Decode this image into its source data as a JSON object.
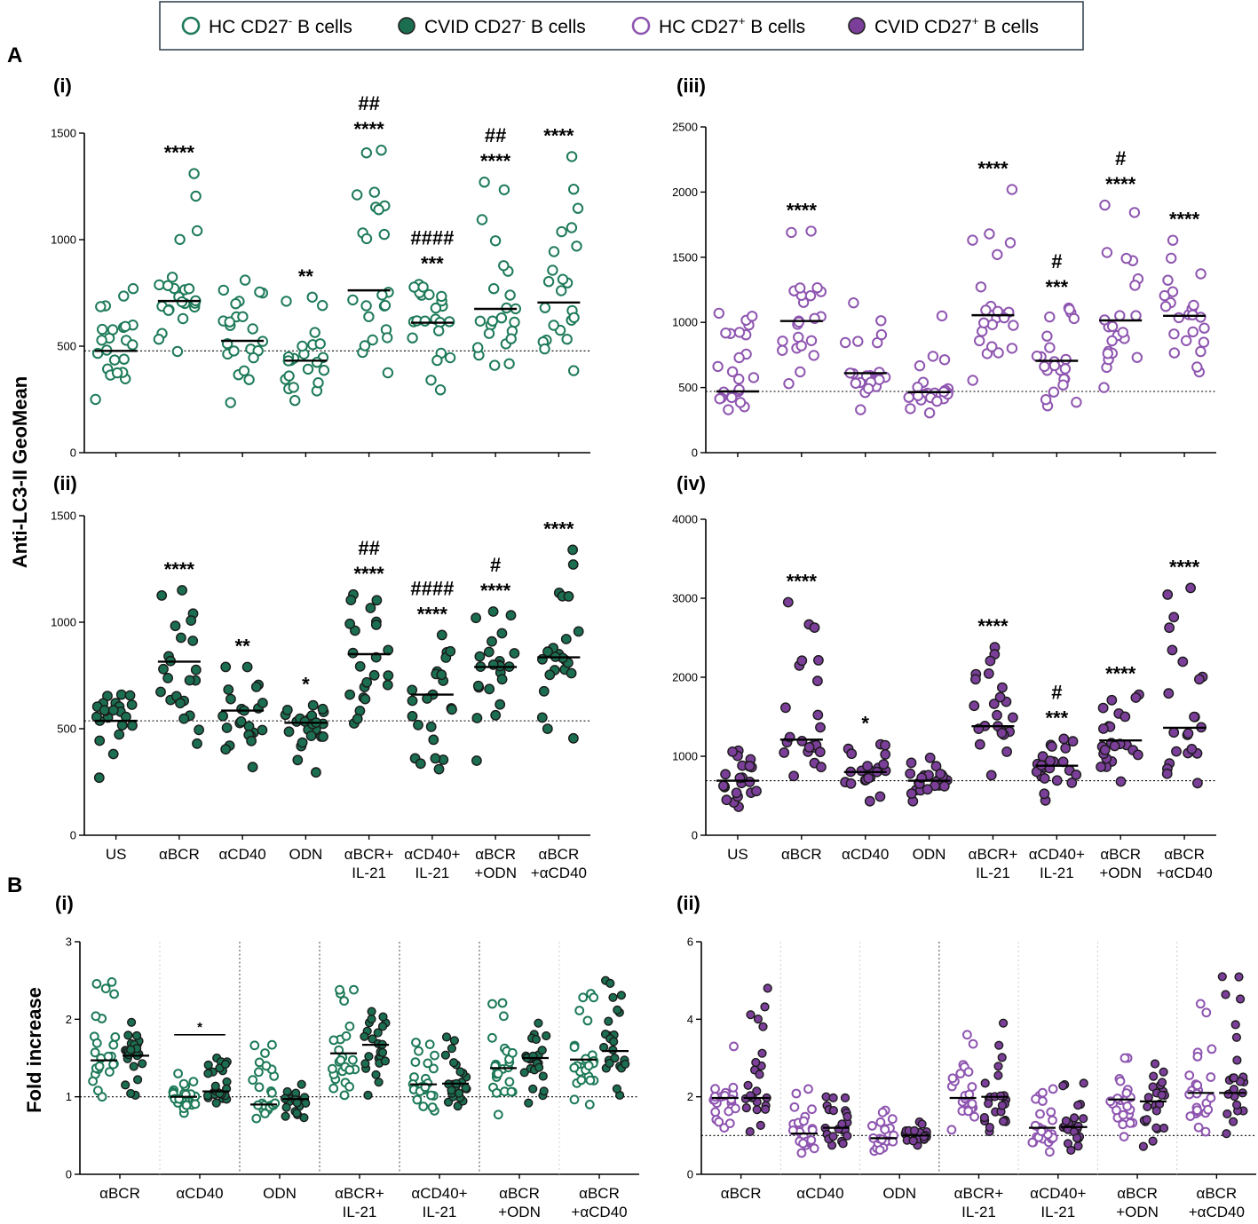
{
  "colors": {
    "green": "#1b6e50",
    "green_fill": "#1b6e50",
    "purple": "#6a2c86",
    "purple_fill": "#7b3f99",
    "hollow_green_stroke": "#1d7a58",
    "hollow_purple_stroke": "#8e55b0"
  },
  "legend": [
    {
      "prefix": "HC CD27",
      "sup": "-",
      "suffix": " B cells",
      "style": "hollow",
      "color": "green"
    },
    {
      "prefix": "CVID CD27",
      "sup": "-",
      "suffix": " B cells",
      "style": "filled",
      "color": "green"
    },
    {
      "prefix": "HC CD27",
      "sup": "+",
      "suffix": " B cells",
      "style": "hollow",
      "color": "purple"
    },
    {
      "prefix": "CVID CD27",
      "sup": "+",
      "suffix": " B cells",
      "style": "filled",
      "color": "purple"
    }
  ],
  "section_labels": {
    "A": "A",
    "B": "B"
  },
  "y_axis_labels": {
    "A": "Anti-LC3-II GeoMean",
    "B": "Fold increase"
  },
  "chart_data": [
    {
      "id": "A-i",
      "panel": "(i)",
      "type": "scatter",
      "group": "HC CD27- B cells",
      "style": "hollow",
      "color": "green",
      "ylim": [
        0,
        1500
      ],
      "yticks": [
        0,
        500,
        1000,
        1500
      ],
      "baseline": 478,
      "categories": [
        "US",
        "αBCR",
        "αCD40",
        "ODN",
        "αBCR+ IL-21",
        "αCD40+ IL-21",
        "αBCR +ODN",
        "αBCR +αCD40"
      ],
      "medians": [
        478,
        712,
        525,
        432,
        762,
        610,
        675,
        705
      ],
      "min": [
        250,
        475,
        235,
        245,
        375,
        295,
        410,
        385
      ],
      "max": [
        770,
        1310,
        810,
        730,
        1420,
        790,
        1270,
        1390
      ],
      "labels": [
        [
          ""
        ],
        [
          "****"
        ],
        [
          ""
        ],
        [
          "**"
        ],
        [
          "##",
          "****"
        ],
        [
          "####",
          "***"
        ],
        [
          "##",
          "****"
        ],
        [
          "****"
        ]
      ]
    },
    {
      "id": "A-ii",
      "panel": "(ii)",
      "type": "scatter",
      "group": "CVID CD27- B cells",
      "style": "filled",
      "color": "green",
      "ylim": [
        0,
        1500
      ],
      "yticks": [
        0,
        500,
        1000,
        1500
      ],
      "baseline": 537,
      "categories": [
        "US",
        "αBCR",
        "αCD40",
        "ODN",
        "αBCR+ IL-21",
        "αCD40+ IL-21",
        "αBCR +ODN",
        "αBCR +αCD40"
      ],
      "medians": [
        537,
        815,
        585,
        528,
        850,
        660,
        790,
        835
      ],
      "min": [
        270,
        430,
        320,
        295,
        525,
        310,
        350,
        455
      ],
      "max": [
        660,
        1150,
        790,
        610,
        1130,
        940,
        1050,
        1340
      ],
      "labels": [
        [
          ""
        ],
        [
          "****"
        ],
        [
          "**"
        ],
        [
          "*"
        ],
        [
          "##",
          "****"
        ],
        [
          "####",
          "****"
        ],
        [
          "#",
          "****"
        ],
        [
          "****"
        ]
      ]
    },
    {
      "id": "A-iii",
      "panel": "(iii)",
      "type": "scatter",
      "group": "HC CD27+ B cells",
      "style": "hollow",
      "color": "purple",
      "ylim": [
        0,
        2500
      ],
      "yticks": [
        0,
        500,
        1000,
        1500,
        2000,
        2500
      ],
      "baseline": 470,
      "categories": [
        "US",
        "αBCR",
        "αCD40",
        "ODN",
        "αBCR+ IL-21",
        "αCD40+ IL-21",
        "αBCR +ODN",
        "αBCR +αCD40"
      ],
      "medians": [
        470,
        1010,
        610,
        465,
        1055,
        705,
        1015,
        1050
      ],
      "min": [
        330,
        530,
        330,
        305,
        555,
        360,
        500,
        620
      ],
      "max": [
        1070,
        1700,
        1150,
        1050,
        2020,
        1110,
        1900,
        1630
      ],
      "labels": [
        [
          ""
        ],
        [
          "****"
        ],
        [
          ""
        ],
        [
          ""
        ],
        [
          "****"
        ],
        [
          "#",
          "***"
        ],
        [
          "#",
          "****"
        ],
        [
          "****"
        ]
      ]
    },
    {
      "id": "A-iv",
      "panel": "(iv)",
      "type": "scatter",
      "group": "CVID CD27+ B cells",
      "style": "filled",
      "color": "purple",
      "ylim": [
        0,
        4000
      ],
      "yticks": [
        0,
        1000,
        2000,
        3000,
        4000
      ],
      "baseline": 690,
      "categories": [
        "US",
        "αBCR",
        "αCD40",
        "ODN",
        "αBCR+ IL-21",
        "αCD40+ IL-21",
        "αBCR +ODN",
        "αBCR +αCD40"
      ],
      "medians": [
        690,
        1210,
        800,
        690,
        1380,
        880,
        1200,
        1360
      ],
      "min": [
        360,
        750,
        430,
        430,
        760,
        440,
        680,
        660
      ],
      "max": [
        1070,
        2950,
        1150,
        980,
        2380,
        1220,
        1780,
        3130
      ],
      "labels": [
        [
          ""
        ],
        [
          "****"
        ],
        [
          "*"
        ],
        [
          ""
        ],
        [
          "****"
        ],
        [
          "#",
          "***"
        ],
        [
          "****"
        ],
        [
          "****"
        ]
      ]
    },
    {
      "id": "B-i",
      "panel": "(i)",
      "type": "scatter",
      "group": "CD27- fold increase (HC hollow, CVID filled)",
      "color": "green",
      "ylim": [
        0,
        3
      ],
      "yticks": [
        0,
        1,
        2,
        3
      ],
      "baseline": 1.0,
      "categories": [
        "αBCR",
        "αCD40",
        "ODN",
        "αBCR+ IL-21",
        "αCD40+ IL-21",
        "αBCR +ODN",
        "αBCR +αCD40"
      ],
      "series": [
        {
          "name": "HC CD27- B cells",
          "style": "hollow",
          "medians": [
            1.47,
            1.0,
            0.9,
            1.56,
            1.16,
            1.37,
            1.48
          ],
          "min": [
            1.0,
            0.79,
            0.72,
            1.02,
            0.82,
            0.77,
            0.9
          ],
          "max": [
            2.48,
            1.3,
            1.67,
            2.38,
            1.7,
            2.21,
            2.33
          ]
        },
        {
          "name": "CVID CD27- B cells",
          "style": "filled",
          "medians": [
            1.53,
            1.07,
            0.97,
            1.67,
            1.17,
            1.5,
            1.59
          ],
          "min": [
            1.02,
            0.92,
            0.73,
            1.02,
            0.88,
            0.92,
            1.02
          ],
          "max": [
            1.96,
            1.5,
            1.16,
            2.1,
            1.77,
            1.95,
            2.5
          ]
        }
      ],
      "annotation": {
        "category": "αCD40",
        "text": "*"
      },
      "group_dividers": [
        {
          "after": 0,
          "style": "faint"
        },
        {
          "after": 1,
          "style": "dotted"
        },
        {
          "after": 2,
          "style": "dotted"
        },
        {
          "after": 3,
          "style": "dotted"
        },
        {
          "after": 4,
          "style": "dotted"
        },
        {
          "after": 5,
          "style": "faint"
        }
      ]
    },
    {
      "id": "B-ii",
      "panel": "(ii)",
      "type": "scatter",
      "group": "CD27+ fold increase (HC hollow, CVID filled)",
      "color": "purple",
      "ylim": [
        0,
        6
      ],
      "yticks": [
        0,
        2,
        4,
        6
      ],
      "baseline": 1.0,
      "categories": [
        "αBCR",
        "αCD40",
        "ODN",
        "αBCR+ IL-21",
        "αCD40+ IL-21",
        "αBCR +ODN",
        "αBCR +αCD40"
      ],
      "series": [
        {
          "name": "HC CD27+ B cells",
          "style": "hollow",
          "medians": [
            1.97,
            1.05,
            0.93,
            1.97,
            1.2,
            1.93,
            2.1
          ],
          "min": [
            1.2,
            0.55,
            0.6,
            1.15,
            0.58,
            0.97,
            1.1
          ],
          "max": [
            3.3,
            2.2,
            1.65,
            3.6,
            2.2,
            3.0,
            4.4
          ]
        },
        {
          "name": "CVID CD27+ B cells",
          "style": "filled",
          "medians": [
            1.97,
            1.2,
            1.0,
            2.0,
            1.22,
            1.88,
            2.1
          ],
          "min": [
            1.1,
            0.75,
            0.75,
            1.1,
            0.62,
            0.72,
            1.05
          ],
          "max": [
            4.8,
            2.0,
            1.35,
            3.9,
            2.35,
            2.85,
            5.1
          ]
        }
      ],
      "annotation": null,
      "group_dividers": [
        {
          "after": 0,
          "style": "faint"
        },
        {
          "after": 1,
          "style": "faint"
        },
        {
          "after": 2,
          "style": "dotted"
        },
        {
          "after": 3,
          "style": "faint"
        },
        {
          "after": 4,
          "style": "faint"
        },
        {
          "after": 5,
          "style": "faint"
        }
      ]
    }
  ]
}
